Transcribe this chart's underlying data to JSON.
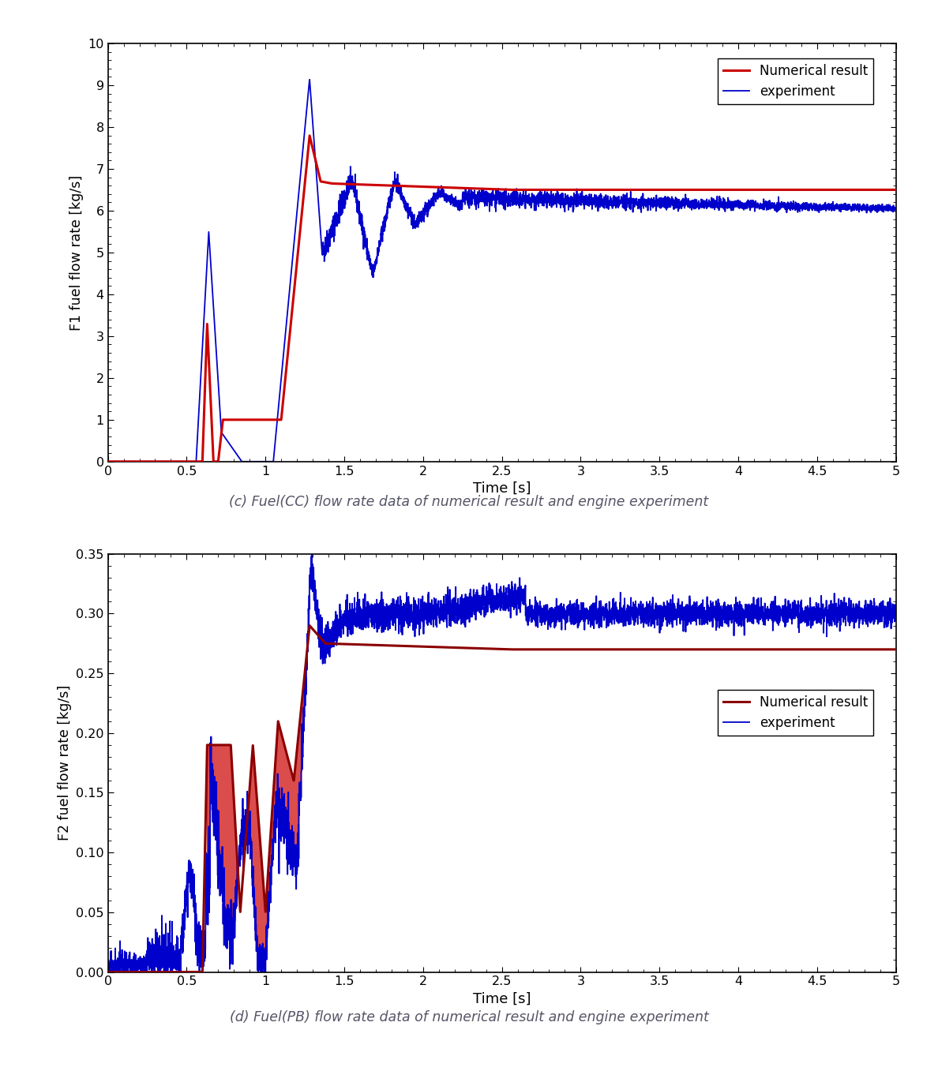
{
  "fig_width": 11.88,
  "fig_height": 13.76,
  "dpi": 100,
  "background_color": "#ffffff",
  "top_caption": "(c) Fuel(CC) flow rate data of numerical result and engine experiment",
  "bottom_caption": "(d) Fuel(PB) flow rate data of numerical result and engine experiment",
  "caption_color": "#555566",
  "caption_fontsize": 12.5,
  "plot1": {
    "xlim": [
      0,
      5
    ],
    "ylim": [
      0,
      10
    ],
    "xticks": [
      0,
      0.5,
      1,
      1.5,
      2,
      2.5,
      3,
      3.5,
      4,
      4.5,
      5
    ],
    "yticks": [
      0,
      1,
      2,
      3,
      4,
      5,
      6,
      7,
      8,
      9,
      10
    ],
    "xlabel": "Time [s]",
    "ylabel": "F1 fuel flow rate [kg/s]",
    "legend_labels": [
      "Numerical result",
      "experiment"
    ],
    "numerical_color": "#CC0000",
    "experiment_color": "#0000CC",
    "numerical_lw": 2.2,
    "experiment_lw": 1.3
  },
  "plot2": {
    "xlim": [
      0,
      5
    ],
    "ylim": [
      0,
      0.35
    ],
    "xticks": [
      0,
      0.5,
      1,
      1.5,
      2,
      2.5,
      3,
      3.5,
      4,
      4.5,
      5
    ],
    "yticks": [
      0,
      0.05,
      0.1,
      0.15,
      0.2,
      0.25,
      0.3,
      0.35
    ],
    "xlabel": "Time [s]",
    "ylabel": "F2 fuel flow rate [kg/s]",
    "legend_labels": [
      "Numerical result",
      "experiment"
    ],
    "numerical_color": "#8B0000",
    "experiment_color": "#0000CC",
    "numerical_lw": 2.2,
    "experiment_lw": 1.3,
    "fill_color": "#CC0000",
    "fill_alpha": 0.7
  }
}
